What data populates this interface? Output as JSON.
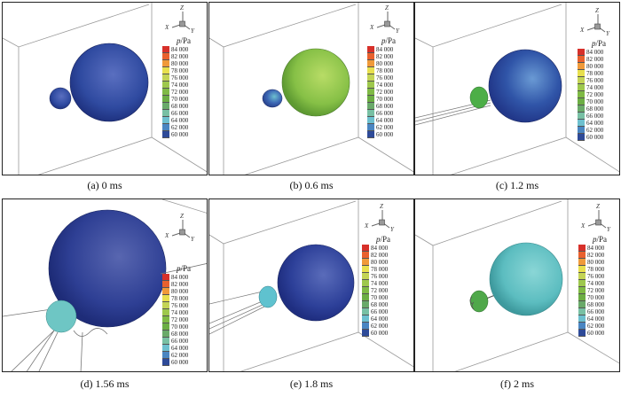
{
  "figure": {
    "legend_title": "p/Pa",
    "legend_title_italic": "p",
    "legend_title_unit": "/Pa",
    "axis_labels": {
      "z": "Z",
      "x": "X",
      "y": "Y"
    },
    "scale_values": [
      "84 000",
      "82 000",
      "80 000",
      "78 000",
      "76 000",
      "74 000",
      "72 000",
      "70 000",
      "68 000",
      "66 000",
      "64 000",
      "62 000",
      "60 000"
    ],
    "scale_colors": [
      "#d7302a",
      "#e9612e",
      "#f09a3a",
      "#e8e04e",
      "#c4d456",
      "#9ec84d",
      "#7fba45",
      "#6cae44",
      "#6aaa6a",
      "#78c0a4",
      "#6dc0cf",
      "#4a86c2",
      "#2e4a98"
    ],
    "panels": [
      {
        "id": "a",
        "caption": "(a) 0 ms",
        "big_sphere_color": "#2f4aa0",
        "small_sphere_color": "#3350a6"
      },
      {
        "id": "b",
        "caption": "(b) 0.6 ms",
        "big_sphere_color": "#86c046",
        "small_sphere_color": "#3d68b5"
      },
      {
        "id": "c",
        "caption": "(c) 1.2 ms",
        "big_sphere_color": "#3055a8",
        "small_sphere_color": "#4cae47"
      },
      {
        "id": "d",
        "caption": "(d) 1.56 ms",
        "big_sphere_color": "#2e3f94",
        "small_sphere_color": "#6ec6c4"
      },
      {
        "id": "e",
        "caption": "(e) 1.8 ms",
        "big_sphere_color": "#2d4099",
        "small_sphere_color": "#5fc2cf"
      },
      {
        "id": "f",
        "caption": "(f) 2 ms",
        "big_sphere_color": "#5cbdc0",
        "small_sphere_color": "#4fa84a"
      }
    ]
  }
}
